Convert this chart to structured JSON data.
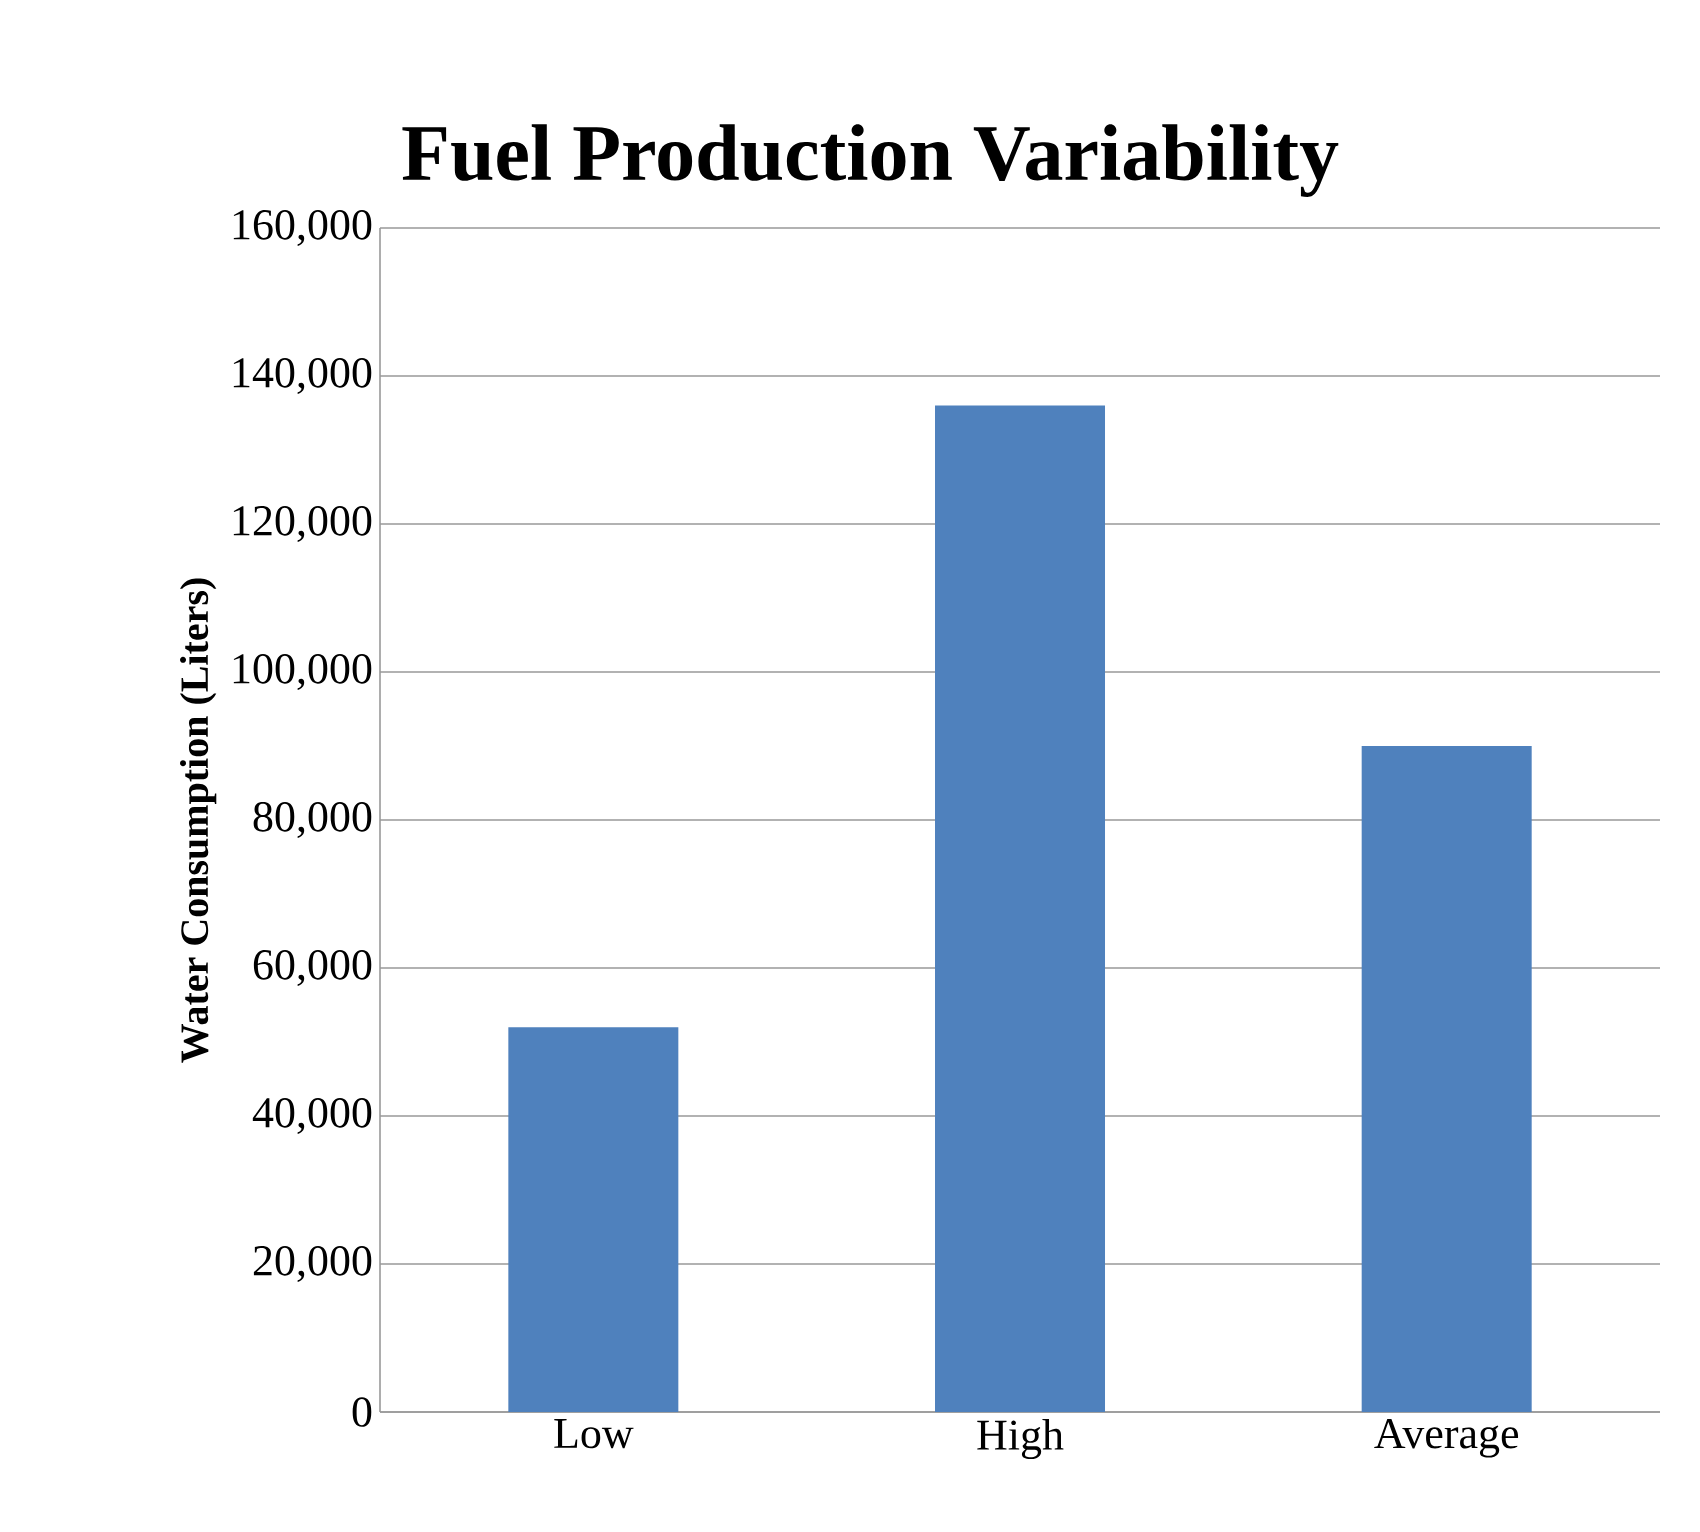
{
  "chart_data": {
    "type": "bar",
    "title": "Fuel Production Variability",
    "ylabel": "Water Consumption (Liters)",
    "categories": [
      "Low",
      "High",
      "Average"
    ],
    "values": [
      52000,
      136000,
      90000
    ],
    "color": "#4f81bd",
    "ylim": [
      0,
      160000
    ],
    "yticks": [
      {
        "value": 0,
        "label": "0"
      },
      {
        "value": 20000,
        "label": "20,000"
      },
      {
        "value": 40000,
        "label": "40,000"
      },
      {
        "value": 60000,
        "label": "60,000"
      },
      {
        "value": 80000,
        "label": "80,000"
      },
      {
        "value": 100000,
        "label": "100,000"
      },
      {
        "value": 120000,
        "label": "120,000"
      },
      {
        "value": 140000,
        "label": "140,000"
      },
      {
        "value": 160000,
        "label": "160,000"
      }
    ],
    "grid": "y"
  }
}
